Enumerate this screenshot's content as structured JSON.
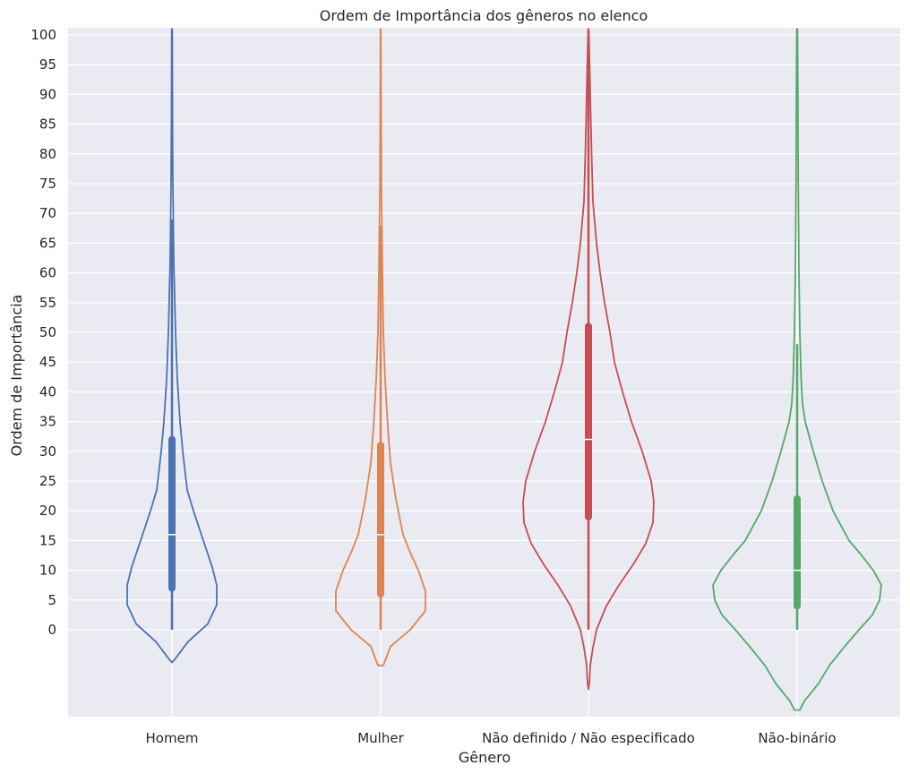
{
  "chart_data": {
    "type": "violin",
    "title": "Ordem de Importância dos gêneros no elenco",
    "xlabel": "Gênero",
    "ylabel": "Ordem de Importância",
    "ylim": [
      -14.5,
      101
    ],
    "yticks": [
      0,
      5,
      10,
      15,
      20,
      25,
      30,
      35,
      40,
      45,
      50,
      55,
      60,
      65,
      70,
      75,
      80,
      85,
      90,
      95,
      100
    ],
    "grid": true,
    "categories": [
      "Homem",
      "Mulher",
      "Não definido / Não especificado",
      "Não-binário"
    ],
    "series": [
      {
        "category": "Homem",
        "color": "#4c72b0",
        "median": 16,
        "q1": 7,
        "q3": 32,
        "whisker_low": 0,
        "whisker_high": 69,
        "density": [
          [
            -5.5,
            0
          ],
          [
            -5,
            0.03
          ],
          [
            -2,
            0.18
          ],
          [
            1,
            0.4
          ],
          [
            4.2,
            0.5
          ],
          [
            7.5,
            0.5
          ],
          [
            10.5,
            0.45
          ],
          [
            15,
            0.35
          ],
          [
            20,
            0.24
          ],
          [
            23.5,
            0.17
          ],
          [
            30,
            0.12
          ],
          [
            35,
            0.09
          ],
          [
            42,
            0.06
          ],
          [
            50,
            0.04
          ],
          [
            62,
            0.02
          ],
          [
            75,
            0.01
          ],
          [
            85,
            0.006
          ],
          [
            101,
            0.003
          ]
        ]
      },
      {
        "category": "Mulher",
        "color": "#dd8452",
        "median": 16,
        "q1": 6,
        "q3": 31,
        "whisker_low": 0,
        "whisker_high": 68,
        "density": [
          [
            -6,
            0
          ],
          [
            -6,
            0.03
          ],
          [
            -2.8,
            0.11
          ],
          [
            0,
            0.33
          ],
          [
            3.2,
            0.5
          ],
          [
            6.5,
            0.5
          ],
          [
            10,
            0.42
          ],
          [
            13,
            0.33
          ],
          [
            16,
            0.25
          ],
          [
            22,
            0.17
          ],
          [
            28,
            0.11
          ],
          [
            34,
            0.08
          ],
          [
            42,
            0.05
          ],
          [
            50,
            0.03
          ],
          [
            60,
            0.02
          ],
          [
            75,
            0.008
          ],
          [
            90,
            0.004
          ],
          [
            101,
            0.002
          ]
        ]
      },
      {
        "category": "Não definido / Não especificado",
        "color": "#c44e52",
        "median": 32,
        "q1": 19,
        "q3": 51,
        "whisker_low": 0,
        "whisker_high": 99,
        "density": [
          [
            -10,
            0
          ],
          [
            -9,
            0.01
          ],
          [
            -6,
            0.02
          ],
          [
            -3,
            0.05
          ],
          [
            0,
            0.09
          ],
          [
            4,
            0.2
          ],
          [
            7.5,
            0.34
          ],
          [
            11,
            0.5
          ],
          [
            14.5,
            0.64
          ],
          [
            18,
            0.72
          ],
          [
            21.5,
            0.73
          ],
          [
            25,
            0.7
          ],
          [
            30,
            0.6
          ],
          [
            35,
            0.48
          ],
          [
            40,
            0.38
          ],
          [
            45,
            0.29
          ],
          [
            50,
            0.24
          ],
          [
            55,
            0.18
          ],
          [
            60,
            0.13
          ],
          [
            65,
            0.09
          ],
          [
            72,
            0.05
          ],
          [
            80,
            0.035
          ],
          [
            90,
            0.02
          ],
          [
            97,
            0.01
          ],
          [
            101,
            0.003
          ]
        ]
      },
      {
        "category": "Não-binário",
        "color": "#55a868",
        "median": 10,
        "q1": 4,
        "q3": 22,
        "whisker_low": 0,
        "whisker_high": 48,
        "density": [
          [
            -13.5,
            0
          ],
          [
            -13.5,
            0.03
          ],
          [
            -12,
            0.08
          ],
          [
            -9,
            0.24
          ],
          [
            -6,
            0.36
          ],
          [
            -3,
            0.52
          ],
          [
            0,
            0.69
          ],
          [
            2.5,
            0.84
          ],
          [
            5,
            0.92
          ],
          [
            7.5,
            0.94
          ],
          [
            10,
            0.85
          ],
          [
            12.5,
            0.72
          ],
          [
            15,
            0.58
          ],
          [
            20,
            0.4
          ],
          [
            25,
            0.28
          ],
          [
            30,
            0.18
          ],
          [
            35,
            0.09
          ],
          [
            38,
            0.06
          ],
          [
            42,
            0.045
          ],
          [
            50,
            0.03
          ],
          [
            60,
            0.02
          ],
          [
            75,
            0.012
          ],
          [
            90,
            0.008
          ],
          [
            101,
            0.004
          ]
        ]
      }
    ]
  }
}
